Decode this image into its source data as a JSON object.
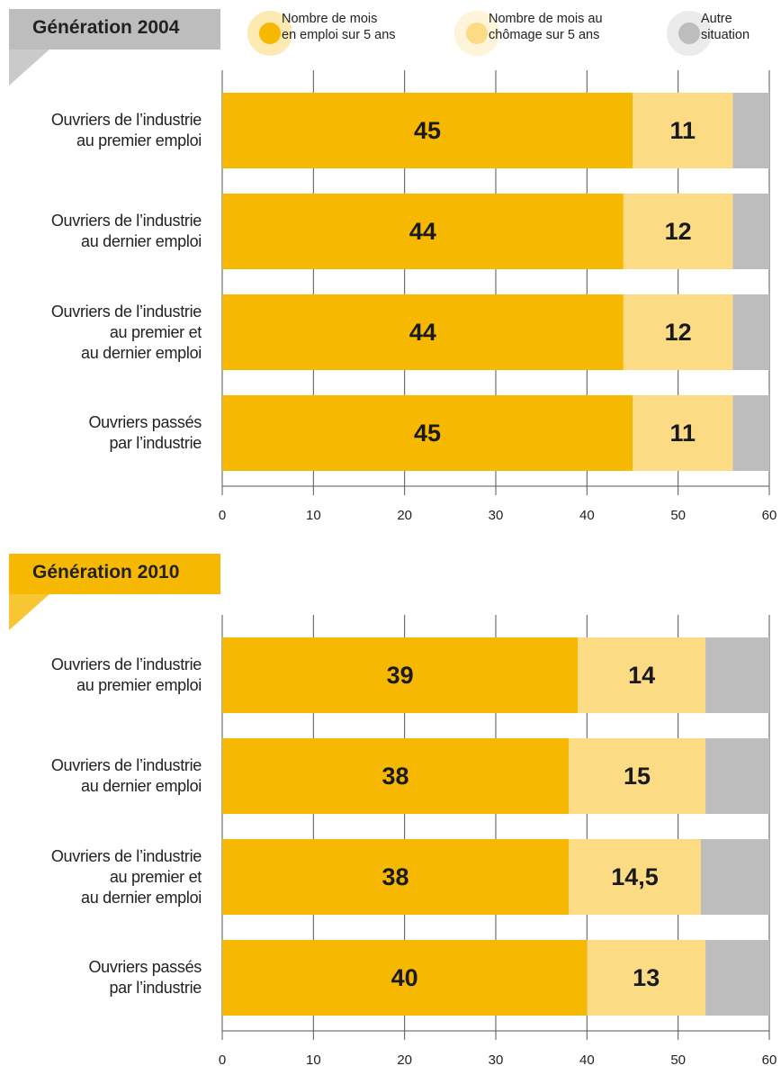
{
  "legend": [
    {
      "name": "Nombre de mois\nen emploi sur 5 ans",
      "color": "#f6b800"
    },
    {
      "name": "Nombre de mois au\nchômage sur 5 ans",
      "color": "#fbdb84"
    },
    {
      "name": "Autre\nsituation",
      "color": "#bdbdbd"
    }
  ],
  "chart_data": [
    {
      "type": "stacked_hbar",
      "title": "Génération 2004",
      "header_color": "#bdbdbd",
      "categories": [
        "Ouvriers de l’industrie\nau premier emploi",
        "Ouvriers de l’industrie\nau dernier emploi",
        "Ouvriers de l’industrie\nau premier et\nau dernier emploi",
        "Ouvriers passés\npar l’industrie"
      ],
      "series": [
        {
          "values": [
            45,
            44,
            44,
            45
          ],
          "show_labels": true
        },
        {
          "values": [
            11,
            12,
            12,
            11
          ],
          "show_labels": true
        },
        {
          "values": [
            4,
            4,
            4,
            4
          ],
          "show_labels": false
        }
      ],
      "xlim": [
        0,
        60
      ],
      "xticks": [
        0,
        10,
        20,
        30,
        40,
        50,
        60
      ],
      "grid": true
    },
    {
      "type": "stacked_hbar",
      "title": "Génération 2010",
      "header_color": "#f6b800",
      "categories": [
        "Ouvriers de l’industrie\nau premier emploi",
        "Ouvriers de l’industrie\nau dernier emploi",
        "Ouvriers de l’industrie\nau premier et\nau dernier emploi",
        "Ouvriers passés\npar l’industrie"
      ],
      "series": [
        {
          "values": [
            39,
            38,
            38,
            40
          ],
          "show_labels": true
        },
        {
          "values": [
            14,
            15,
            14.5,
            13
          ],
          "value_labels": [
            "14",
            "15",
            "14,5",
            "13"
          ],
          "show_labels": true
        },
        {
          "values": [
            7,
            7,
            7.5,
            7
          ],
          "show_labels": false
        }
      ],
      "xlim": [
        0,
        60
      ],
      "xticks": [
        0,
        10,
        20,
        30,
        40,
        50,
        60
      ],
      "grid": true
    }
  ]
}
